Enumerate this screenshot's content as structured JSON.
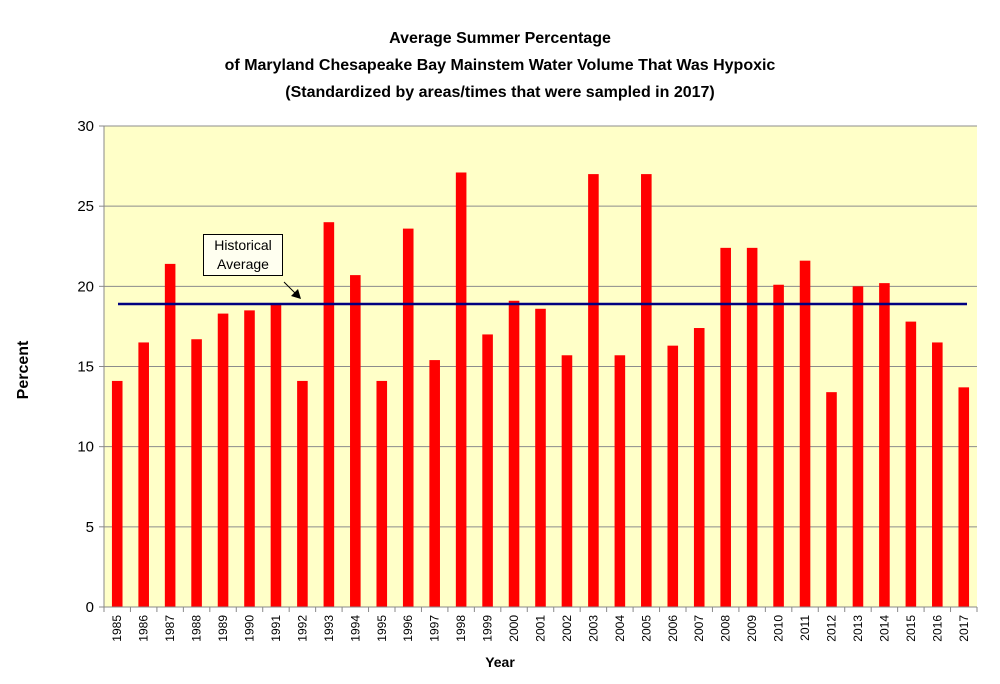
{
  "chart_data": {
    "type": "bar",
    "title_lines": [
      "Average Summer Percentage",
      "of Maryland Chesapeake Bay Mainstem Water Volume That Was Hypoxic",
      "(Standardized by areas/times that were sampled in 2017)"
    ],
    "xlabel": "Year",
    "ylabel": "Percent",
    "ylim": [
      0,
      30
    ],
    "yticks": [
      "0",
      "5",
      "10",
      "15",
      "20",
      "25",
      "30"
    ],
    "grid": true,
    "categories": [
      "1985",
      "1986",
      "1987",
      "1988",
      "1989",
      "1990",
      "1991",
      "1992",
      "1993",
      "1994",
      "1995",
      "1996",
      "1997",
      "1998",
      "1999",
      "2000",
      "2001",
      "2002",
      "2003",
      "2004",
      "2005",
      "2006",
      "2007",
      "2008",
      "2009",
      "2010",
      "2011",
      "2012",
      "2013",
      "2014",
      "2015",
      "2016",
      "2017"
    ],
    "values": [
      14.1,
      16.5,
      21.4,
      16.7,
      18.3,
      18.5,
      18.9,
      14.1,
      24.0,
      20.7,
      14.1,
      23.6,
      15.4,
      27.1,
      17.0,
      19.1,
      18.6,
      15.7,
      27.0,
      15.7,
      27.0,
      16.3,
      17.4,
      22.4,
      22.4,
      20.1,
      21.6,
      13.4,
      20.0,
      20.2,
      17.8,
      16.5,
      13.7
    ],
    "reference_line": {
      "label_lines": [
        "Historical",
        "Average"
      ],
      "value": 18.9
    },
    "colors": {
      "bar": "#ff0000",
      "plot_bg": "#ffffc8",
      "reference": "#000080",
      "grid": "#8c8c8c"
    }
  }
}
